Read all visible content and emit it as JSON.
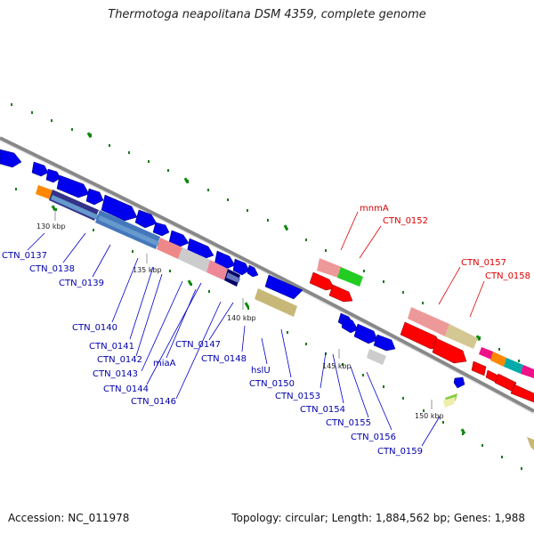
{
  "title": "Thermotoga neapolitana DSM 4359, complete genome",
  "footer": {
    "accession": "Accession: NC_011978",
    "topology": "Topology: circular; Length: 1,884,562 bp; Genes: 1,988"
  },
  "ticks": [
    "130 kbp",
    "135 kbp",
    "140 kbp",
    "145 kbp",
    "150 kbp"
  ],
  "genes_blue": [
    "CTN_0137",
    "CTN_0138",
    "CTN_0139",
    "CTN_0140",
    "CTN_0141",
    "CTN_0142",
    "CTN_0143",
    "miaA",
    "CTN_0144",
    "CTN_0146",
    "CTN_0147",
    "CTN_0148",
    "hslU",
    "CTN_0150",
    "CTN_0153",
    "CTN_0154",
    "CTN_0155",
    "CTN_0156",
    "CTN_0159"
  ],
  "genes_red": [
    "mnmA",
    "CTN_0152",
    "CTN_0157",
    "CTN_0158"
  ],
  "colors": {
    "backbone": "#888888",
    "forward_gene": "#0000ee",
    "reverse_gene": "#ff0000",
    "label_blue": "#0000aa",
    "label_red": "#dd0000",
    "gc_dots": "#1a7a1a"
  }
}
